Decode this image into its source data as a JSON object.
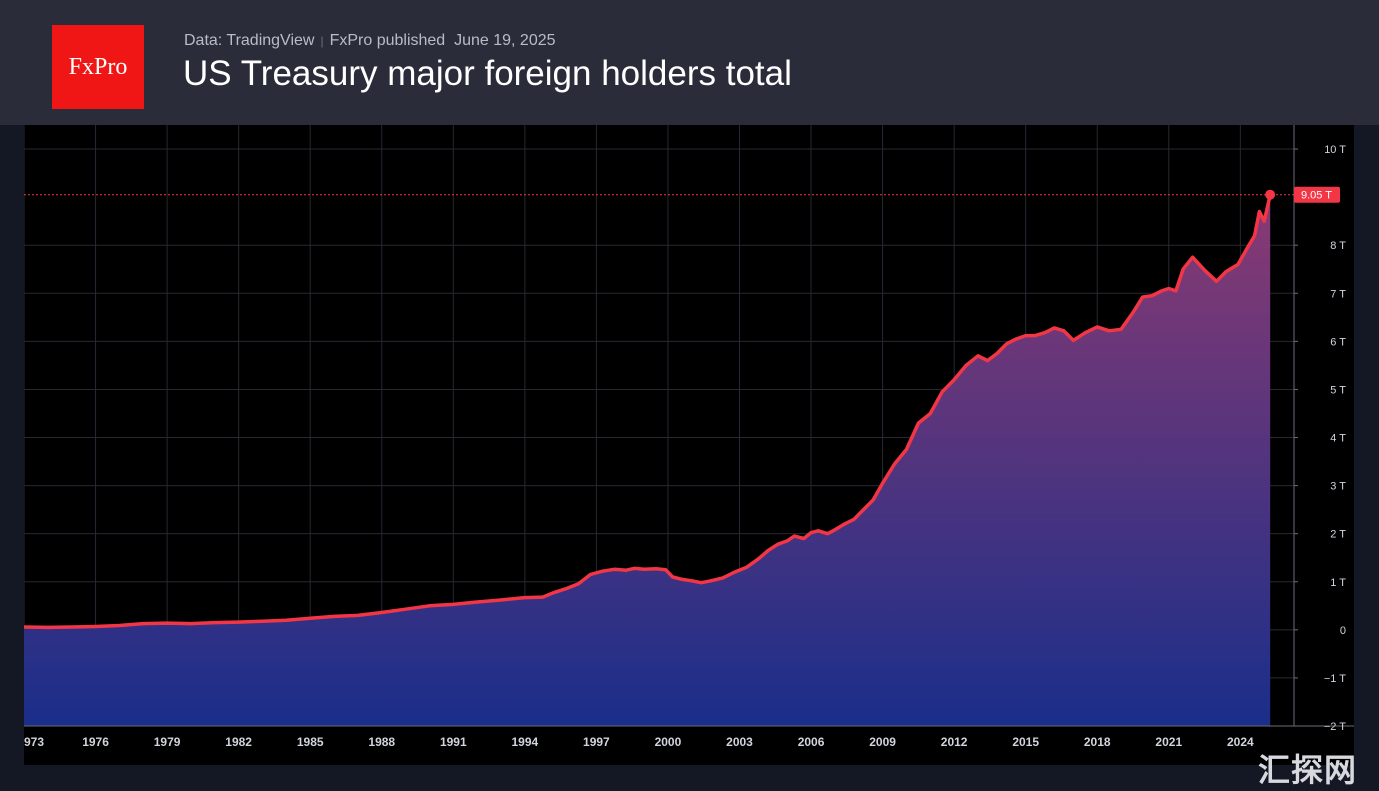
{
  "header": {
    "logo_text": "FxPro",
    "source": "Data: TradingView",
    "publisher": "FxPro published",
    "date": "June 19, 2025",
    "title": "US Treasury major foreign holders total"
  },
  "watermark": {
    "text": "汇探网"
  },
  "colors": {
    "line": "#f23645",
    "fill_top": "#8a3a72",
    "fill_bottom": "#1a2e8a",
    "logo_bg": "#f01616",
    "price_label_bg": "#f23645"
  },
  "chart_data": {
    "type": "area",
    "title": "US Treasury major foreign holders total",
    "xlabel": "",
    "ylabel": "",
    "unit": "T",
    "grid": true,
    "xlim": [
      1973,
      2026.25
    ],
    "ylim": [
      -2,
      10.5
    ],
    "x_ticks": [
      "973",
      "1976",
      "1979",
      "1982",
      "1985",
      "1988",
      "1991",
      "1994",
      "1997",
      "2000",
      "2003",
      "2006",
      "2009",
      "2012",
      "2015",
      "2018",
      "2021",
      "2024"
    ],
    "y_ticks": [
      "10 T",
      "8 T",
      "7 T",
      "6 T",
      "5 T",
      "4 T",
      "3 T",
      "2 T",
      "1 T",
      "0",
      "−1 T",
      "−2 T"
    ],
    "last_value_label": "9.05 T",
    "last_value": 9.05,
    "x": [
      1973.0,
      1974.0,
      1975.0,
      1976.0,
      1977.0,
      1978.0,
      1979.0,
      1980.0,
      1981.0,
      1982.0,
      1983.0,
      1984.0,
      1985.0,
      1986.0,
      1987.0,
      1988.0,
      1989.0,
      1990.0,
      1991.0,
      1992.0,
      1993.0,
      1994.0,
      1994.75,
      1995.25,
      1995.75,
      1996.25,
      1996.75,
      1997.25,
      1997.75,
      1998.25,
      1998.6,
      1999.0,
      1999.5,
      1999.9,
      2000.2,
      2000.6,
      2001.0,
      2001.4,
      2001.8,
      2002.3,
      2002.8,
      2003.3,
      2003.8,
      2004.2,
      2004.6,
      2005.0,
      2005.3,
      2005.7,
      2006.0,
      2006.3,
      2006.7,
      2007.0,
      2007.4,
      2007.8,
      2008.2,
      2008.6,
      2009.0,
      2009.5,
      2010.0,
      2010.5,
      2011.0,
      2011.5,
      2012.0,
      2012.5,
      2013.0,
      2013.4,
      2013.8,
      2014.2,
      2014.6,
      2015.0,
      2015.4,
      2015.8,
      2016.2,
      2016.6,
      2017.0,
      2017.5,
      2018.0,
      2018.5,
      2019.0,
      2019.5,
      2019.9,
      2020.3,
      2020.7,
      2021.0,
      2021.3,
      2021.6,
      2022.0,
      2022.5,
      2023.0,
      2023.4,
      2023.9,
      2024.3,
      2024.6,
      2024.8,
      2025.0,
      2025.25
    ],
    "y": [
      0.06,
      0.05,
      0.06,
      0.07,
      0.09,
      0.13,
      0.14,
      0.13,
      0.15,
      0.16,
      0.18,
      0.2,
      0.24,
      0.28,
      0.3,
      0.36,
      0.43,
      0.5,
      0.53,
      0.58,
      0.62,
      0.67,
      0.68,
      0.78,
      0.86,
      0.96,
      1.15,
      1.22,
      1.26,
      1.24,
      1.28,
      1.26,
      1.27,
      1.25,
      1.1,
      1.05,
      1.02,
      0.98,
      1.02,
      1.08,
      1.2,
      1.3,
      1.48,
      1.65,
      1.78,
      1.85,
      1.95,
      1.9,
      2.02,
      2.06,
      2.0,
      2.08,
      2.2,
      2.3,
      2.5,
      2.7,
      3.05,
      3.45,
      3.75,
      4.3,
      4.5,
      4.95,
      5.2,
      5.5,
      5.7,
      5.6,
      5.75,
      5.95,
      6.05,
      6.12,
      6.12,
      6.18,
      6.28,
      6.22,
      6.02,
      6.18,
      6.3,
      6.22,
      6.25,
      6.6,
      6.92,
      6.95,
      7.05,
      7.1,
      7.05,
      7.5,
      7.75,
      7.48,
      7.25,
      7.45,
      7.6,
      7.95,
      8.2,
      8.7,
      8.5,
      9.05
    ]
  }
}
